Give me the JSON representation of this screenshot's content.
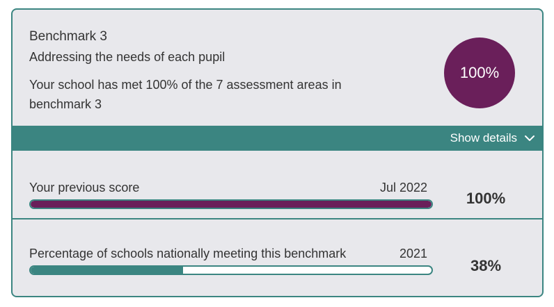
{
  "benchmark": {
    "title": "Benchmark 3",
    "subtitle": "Addressing the needs of each pupil",
    "summary": "Your school has met 100% of the 7 assessment areas in benchmark 3",
    "score": "100%",
    "score_color": "#6a1f5a"
  },
  "details_toggle": {
    "label": "Show details",
    "icon": "chevron-down-icon"
  },
  "rows": [
    {
      "label": "Your previous score",
      "date": "Jul 2022",
      "value": "100%",
      "progress_percent": 100,
      "bar_color": "#6a1f5a"
    },
    {
      "label": "Percentage of schools nationally meeting this benchmark",
      "date": "2021",
      "value": "38%",
      "progress_percent": 38,
      "bar_color": "#3b8581"
    }
  ],
  "colors": {
    "accent": "#3b8581",
    "brand": "#6a1f5a",
    "card_background": "#e8e8ec"
  }
}
